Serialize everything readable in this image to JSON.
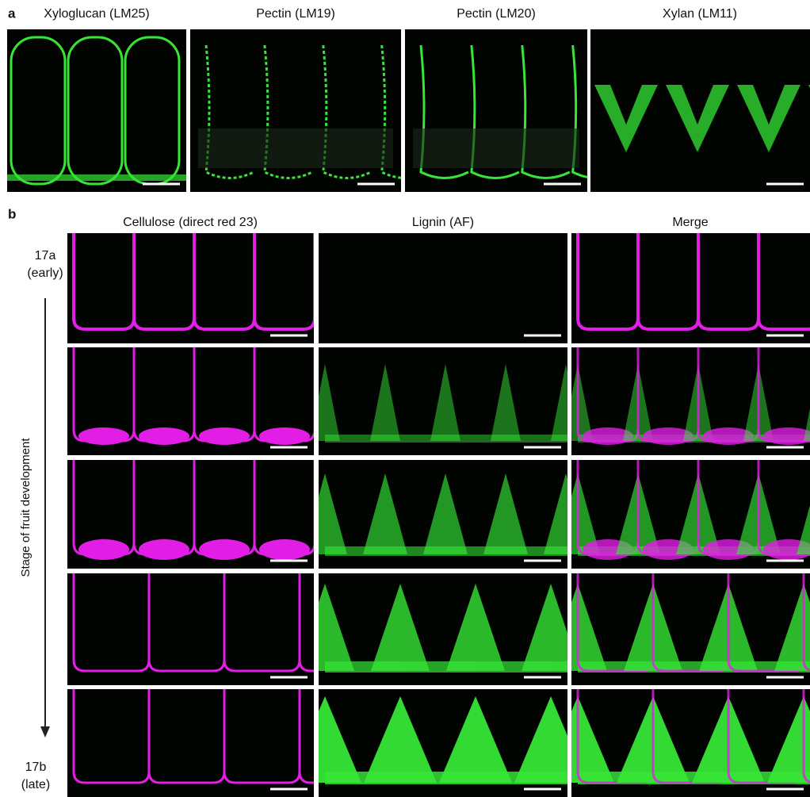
{
  "panel_a": {
    "label": "a",
    "titles": [
      "Xyloglucan (LM25)",
      "Pectin (LM19)",
      "Pectin (LM20)",
      "Xylan (LM11)"
    ]
  },
  "panel_b": {
    "label": "b",
    "column_titles": [
      "Cellulose (direct red 23)",
      "Lignin (AF)",
      "Merge"
    ],
    "row_top": {
      "stage": "17a",
      "note": "(early)"
    },
    "row_bottom": {
      "stage": "17b",
      "note": "(late)"
    },
    "axis_label": "Stage of fruit development"
  }
}
